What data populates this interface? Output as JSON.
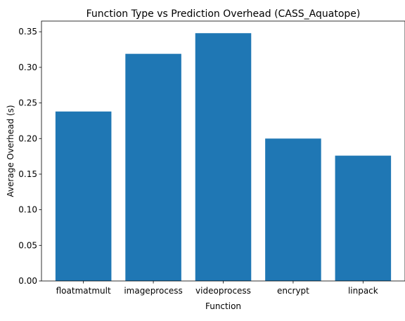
{
  "chart_data": {
    "type": "bar",
    "title": "Function Type vs Prediction Overhead (CASS_Aquatope)",
    "xlabel": "Function",
    "ylabel": "Average Overhead (s)",
    "categories": [
      "floatmatmult",
      "imageprocess",
      "videoprocess",
      "encrypt",
      "linpack"
    ],
    "values": [
      0.238,
      0.319,
      0.348,
      0.2,
      0.176
    ],
    "ylim": [
      0,
      0.365
    ],
    "yticks": [
      "0.00",
      "0.05",
      "0.10",
      "0.15",
      "0.20",
      "0.25",
      "0.30",
      "0.35"
    ],
    "grid": false,
    "bar_color": "#1f77b4"
  }
}
